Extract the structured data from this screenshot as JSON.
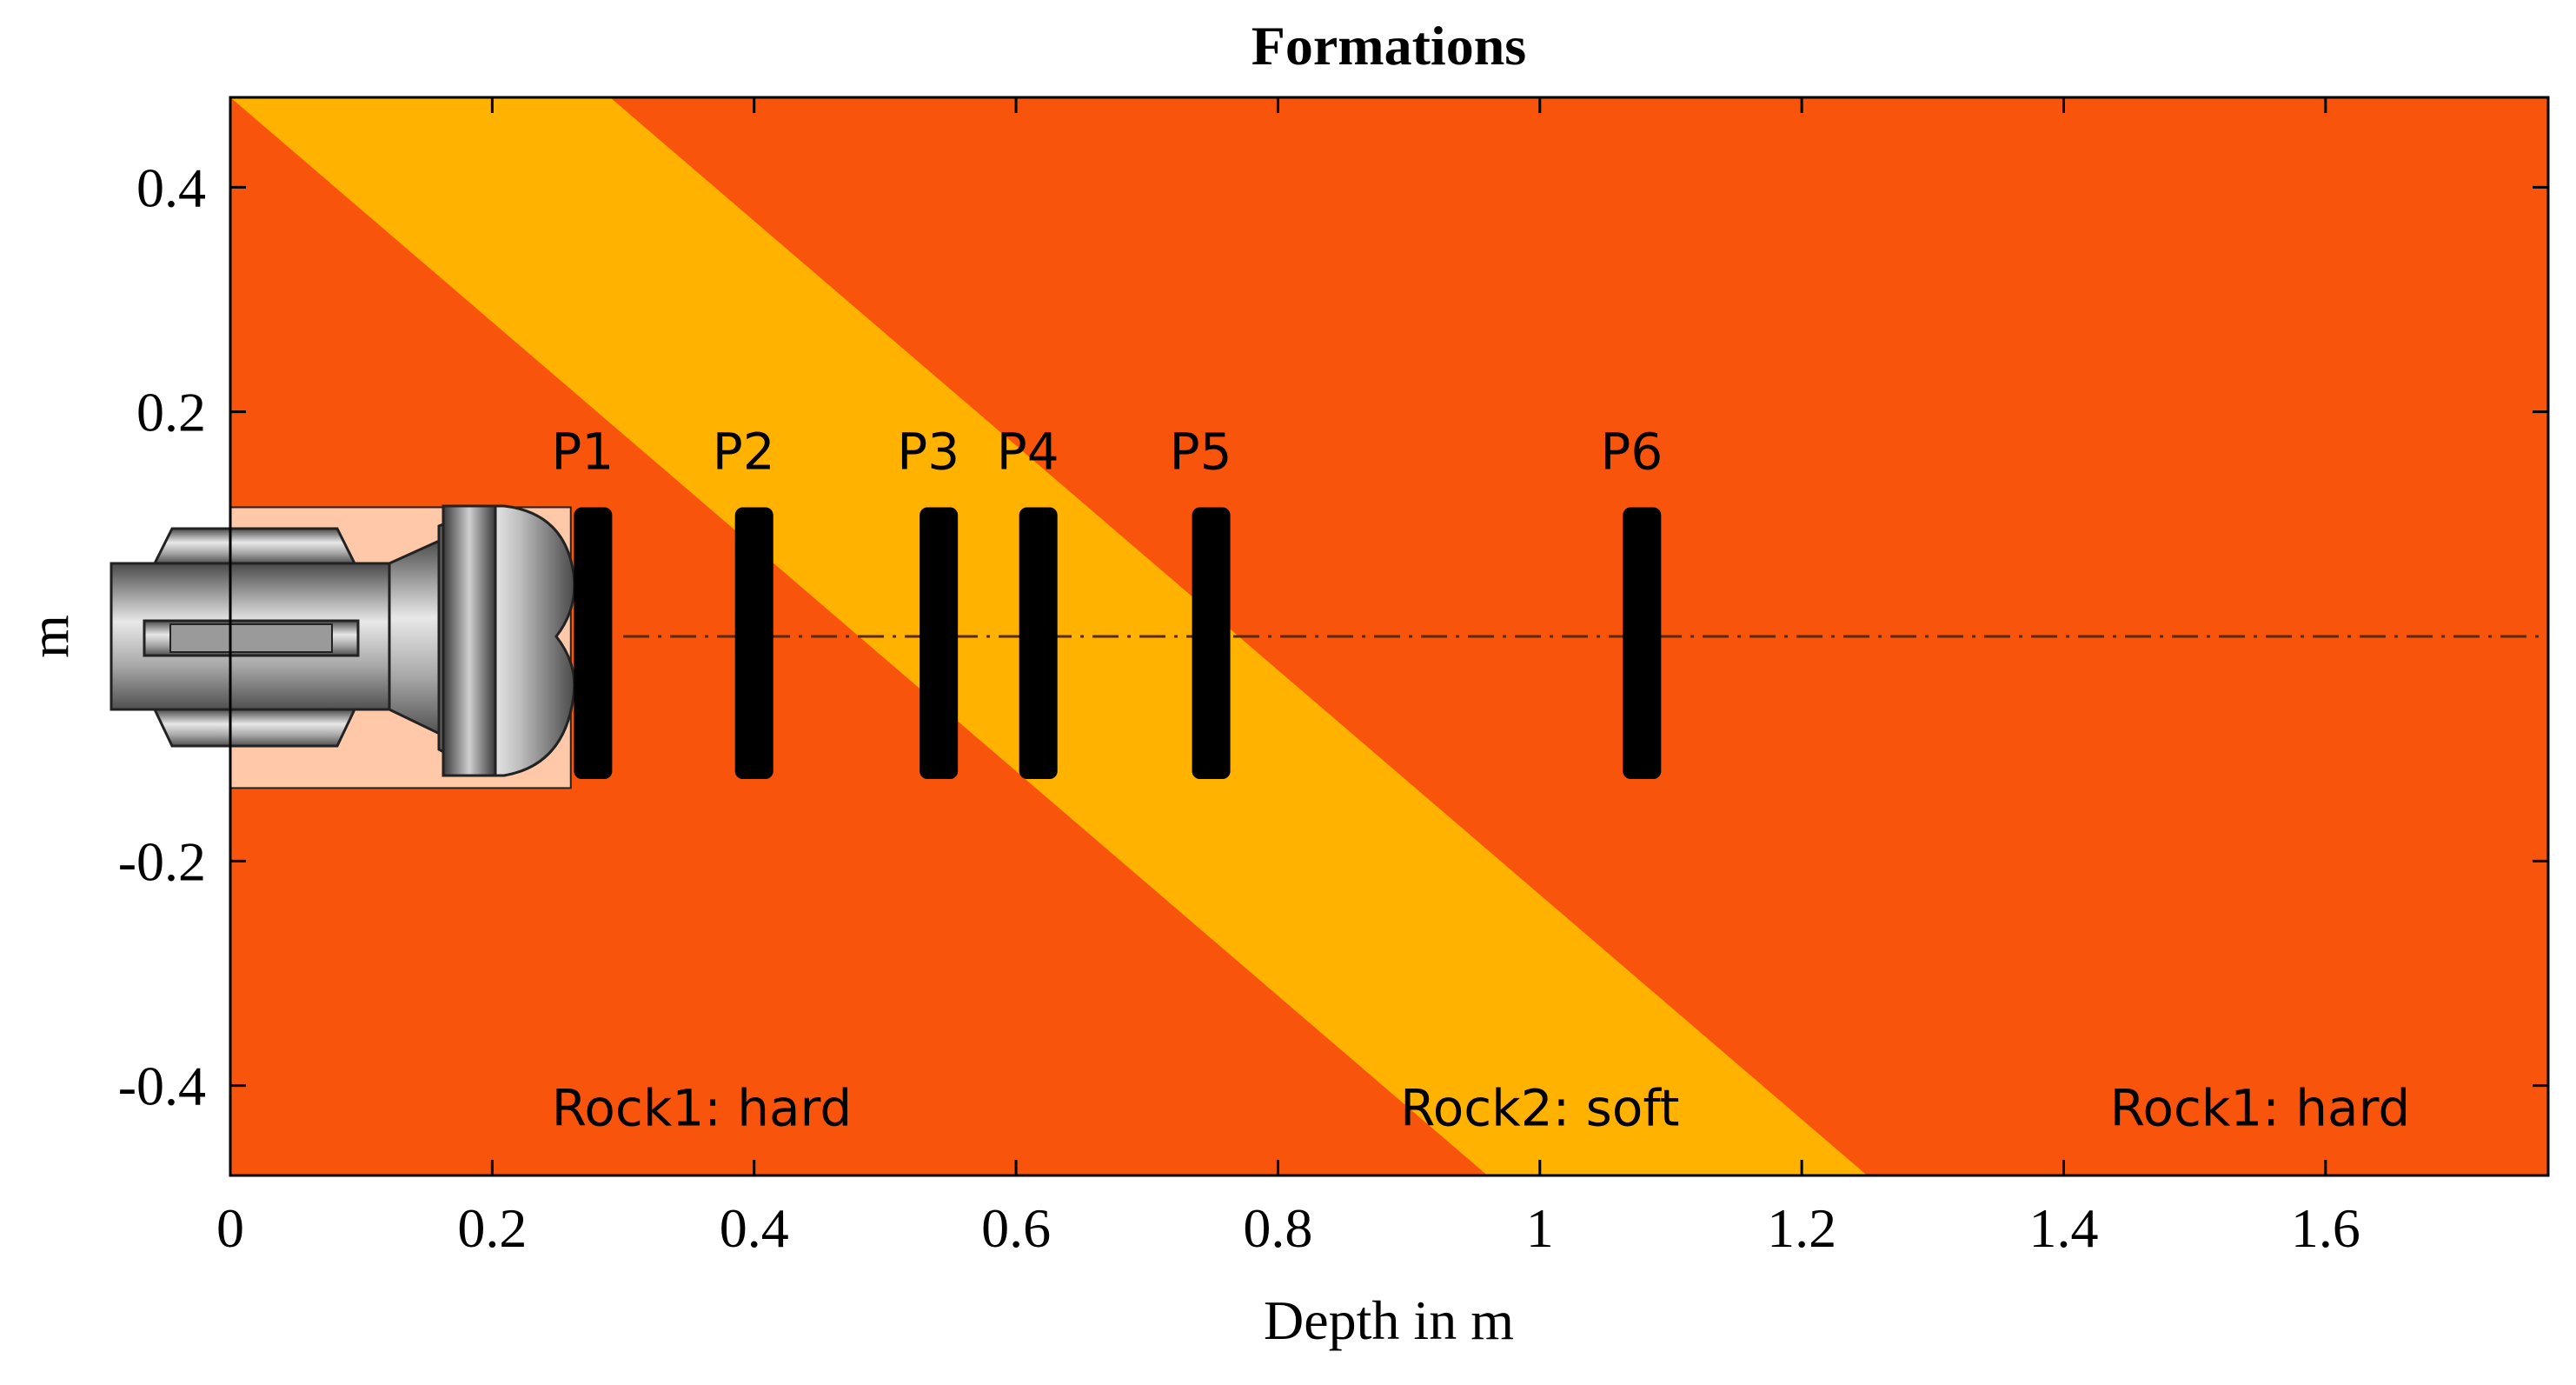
{
  "chart_data": {
    "type": "area",
    "title": "Formations",
    "xlabel": "Depth in m",
    "ylabel": "m",
    "xlim": [
      0,
      1.77
    ],
    "ylim": [
      -0.48,
      0.48
    ],
    "xticks": [
      0,
      0.2,
      0.4,
      0.6,
      0.8,
      1,
      1.2,
      1.4,
      1.6
    ],
    "xtick_labels": [
      "0",
      "0.2",
      "0.4",
      "0.6",
      "0.8",
      "1",
      "1.2",
      "1.4",
      "1.6"
    ],
    "yticks": [
      0.4,
      0.2,
      -0.2,
      -0.4
    ],
    "ytick_labels": [
      "0.4",
      "0.2",
      "-0.2",
      "-0.4"
    ],
    "grid": false,
    "layers": [
      {
        "name": "Rock1: hard",
        "label": "Rock1: hard",
        "color": "#F8540C",
        "label_at": [
          0.36,
          -0.42
        ]
      },
      {
        "name": "Rock2: soft",
        "label": "Rock2: soft",
        "color": "#FFB200",
        "boundary_top": [
          [
            0,
            0.48
          ],
          [
            0.96,
            -0.48
          ]
        ],
        "boundary_bottom": [
          [
            0.29,
            0.48
          ],
          [
            1.25,
            -0.48
          ]
        ],
        "label_at": [
          1.0,
          -0.42
        ]
      },
      {
        "name": "Rock1: hard (right)",
        "label": "Rock1: hard",
        "color": "#F8540C",
        "label_at": [
          1.55,
          -0.42
        ]
      }
    ],
    "centerline_y": 0,
    "tool": {
      "x_range": [
        -0.09,
        0.26
      ],
      "y_range": [
        -0.135,
        0.115
      ],
      "background_color": "#FFC8A8"
    },
    "positions": [
      {
        "name": "P1",
        "x": 0.277
      },
      {
        "name": "P2",
        "x": 0.4
      },
      {
        "name": "P3",
        "x": 0.541
      },
      {
        "name": "P4",
        "x": 0.617
      },
      {
        "name": "P5",
        "x": 0.749
      },
      {
        "name": "P6",
        "x": 1.078
      }
    ],
    "pad_y_range": [
      -0.127,
      0.115
    ]
  }
}
